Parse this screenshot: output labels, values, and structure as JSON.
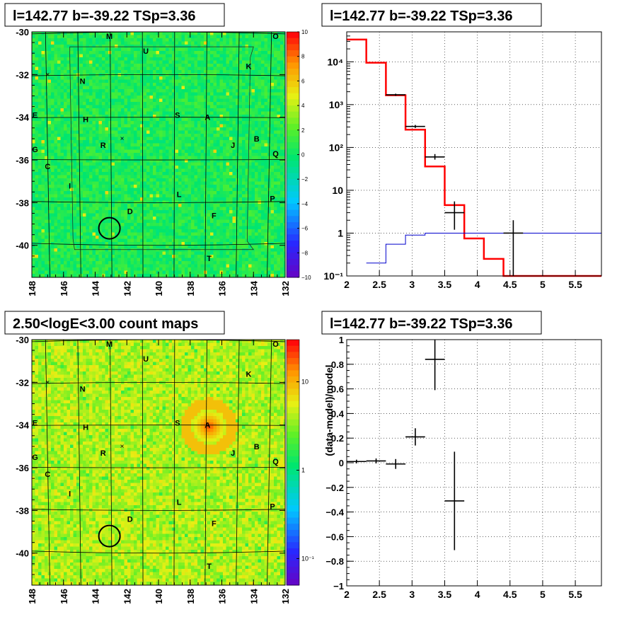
{
  "sky_labels": [
    {
      "t": "M",
      "l": 143.1,
      "b": -30.2
    },
    {
      "t": "O",
      "l": 132.6,
      "b": -30.2
    },
    {
      "t": "U",
      "l": 140.8,
      "b": -30.9
    },
    {
      "t": "K",
      "l": 134.3,
      "b": -31.6
    },
    {
      "t": "N",
      "l": 144.8,
      "b": -32.3
    },
    {
      "t": "E",
      "l": 147.8,
      "b": -33.9
    },
    {
      "t": "H",
      "l": 144.6,
      "b": -34.1
    },
    {
      "t": "S",
      "l": 138.8,
      "b": -33.9
    },
    {
      "t": "A",
      "l": 136.9,
      "b": -34.0
    },
    {
      "t": "B",
      "l": 133.8,
      "b": -35.0
    },
    {
      "t": "G",
      "l": 147.8,
      "b": -35.5
    },
    {
      "t": "R",
      "l": 143.5,
      "b": -35.3
    },
    {
      "t": "J",
      "l": 135.3,
      "b": -35.3
    },
    {
      "t": "Q",
      "l": 132.6,
      "b": -35.7
    },
    {
      "t": "C",
      "l": 147.0,
      "b": -36.3
    },
    {
      "t": "I",
      "l": 145.6,
      "b": -37.2
    },
    {
      "t": "L",
      "l": 138.7,
      "b": -37.6
    },
    {
      "t": "P",
      "l": 132.8,
      "b": -37.8
    },
    {
      "t": "D",
      "l": 141.8,
      "b": -38.4
    },
    {
      "t": "F",
      "l": 136.5,
      "b": -38.6
    },
    {
      "t": "T",
      "l": 136.8,
      "b": -40.6
    }
  ],
  "sky_crosses": [
    {
      "l": 147.0,
      "b": -32.0
    },
    {
      "l": 142.3,
      "b": -35.0
    }
  ],
  "circle": {
    "l": 143.1,
    "b": -39.2
  },
  "panels": {
    "tl": {
      "title": "l=142.77 b=-39.22 TSp=3.36",
      "palette_ticks": [
        "10",
        "8",
        "6",
        "4",
        "2",
        "0",
        "−2",
        "−4",
        "−6",
        "−8",
        "−10"
      ]
    },
    "bl": {
      "title": "2.50<logE<3.00 count maps",
      "palette_ticks": [
        {
          "v": 10,
          "t": "10"
        },
        {
          "v": 1,
          "t": "1"
        },
        {
          "v": 0.1,
          "t": "10⁻¹"
        }
      ]
    },
    "tr": {
      "title": "l=142.77 b=-39.22 TSp=3.36"
    },
    "br": {
      "title": "l=142.77 b=-39.22 TSp=3.36"
    }
  },
  "chart_data": [
    {
      "type": "heatmap",
      "title": "l=142.77 b=-39.22 TSp=3.36",
      "x_ticks": [
        148,
        146,
        144,
        142,
        140,
        138,
        136,
        134,
        132
      ],
      "y_ticks": [
        -30,
        -32,
        -34,
        -36,
        -38,
        -40
      ],
      "xlim": [
        148,
        132
      ],
      "ylim": [
        -30,
        -41.5
      ],
      "zlim": [
        -10,
        10
      ]
    },
    {
      "type": "line",
      "title": "l=142.77 b=-39.22 TSp=3.36",
      "y_scale": "log",
      "xlim": [
        2,
        5.9
      ],
      "ylim": [
        0.1,
        50000
      ],
      "x_ticks": [
        "2",
        "2.5",
        "3",
        "3.5",
        "4",
        "4.5",
        "5",
        "5.5"
      ],
      "y_ticks": [
        {
          "v": 0.1,
          "t": "10⁻¹"
        },
        {
          "v": 1,
          "t": "1"
        },
        {
          "v": 10,
          "t": "10"
        },
        {
          "v": 100,
          "t": "10²"
        },
        {
          "v": 1000,
          "t": "10³"
        },
        {
          "v": 10000,
          "t": "10⁴"
        }
      ],
      "series": [
        {
          "color": "#ff0000",
          "edges": [
            2.0,
            2.3,
            2.6,
            2.9,
            3.2,
            3.5,
            3.8,
            4.1,
            4.4,
            5.9
          ],
          "values": [
            33000,
            9500,
            1650,
            260,
            36,
            4.5,
            0.75,
            0.25,
            0.1
          ]
        },
        {
          "color": "#0000cc",
          "edges": [
            2.3,
            2.6,
            2.9,
            3.2,
            5.9
          ],
          "values": [
            0.2,
            0.55,
            0.9,
            1.0
          ]
        },
        {
          "color": "#000000",
          "points": [
            {
              "x": 2.75,
              "y": 1700,
              "xerr": 0.15,
              "ylo": 1600,
              "yhi": 1800
            },
            {
              "x": 3.05,
              "y": 310,
              "xerr": 0.15,
              "ylo": 285,
              "yhi": 335
            },
            {
              "x": 3.35,
              "y": 60,
              "xerr": 0.15,
              "ylo": 52,
              "yhi": 70
            },
            {
              "x": 3.65,
              "y": 3,
              "xerr": 0.15,
              "ylo": 1.2,
              "yhi": 5.5
            },
            {
              "x": 4.55,
              "y": 1,
              "xerr": 0.15,
              "ylo": 0.1,
              "yhi": 2
            }
          ]
        }
      ]
    },
    {
      "type": "heatmap",
      "title": "2.50<logE<3.00 count maps",
      "x_ticks": [
        148,
        146,
        144,
        142,
        140,
        138,
        136,
        134,
        132
      ],
      "y_ticks": [
        -30,
        -32,
        -34,
        -36,
        -38,
        -40
      ],
      "xlim": [
        148,
        132
      ],
      "ylim": [
        -30,
        -41.5
      ],
      "zlim": [
        0.05,
        30
      ],
      "z_scale": "log"
    },
    {
      "type": "scatter",
      "title": "l=142.77 b=-39.22 TSp=3.36",
      "ylabel": "(data-model)/model",
      "xlim": [
        2,
        5.9
      ],
      "ylim": [
        -1,
        1
      ],
      "x_ticks": [
        "2",
        "2.5",
        "3",
        "3.5",
        "4",
        "4.5",
        "5",
        "5.5"
      ],
      "y_ticks": [
        "1",
        "0.8",
        "0.6",
        "0.4",
        "0.2",
        "0",
        "−0.2",
        "−0.4",
        "−0.6",
        "−0.8",
        "−1"
      ],
      "points": [
        {
          "x": 2.15,
          "y": 0.01,
          "xerr": 0.15,
          "yerr": 0.015
        },
        {
          "x": 2.45,
          "y": 0.015,
          "xerr": 0.15,
          "yerr": 0.02
        },
        {
          "x": 2.75,
          "y": -0.01,
          "xerr": 0.15,
          "yerr": 0.04
        },
        {
          "x": 3.05,
          "y": 0.21,
          "xerr": 0.15,
          "yerr": 0.07
        },
        {
          "x": 3.35,
          "y": 0.84,
          "xerr": 0.15,
          "yerr": 0.25
        },
        {
          "x": 3.65,
          "y": -0.31,
          "xerr": 0.15,
          "yerr": 0.4
        }
      ]
    }
  ]
}
